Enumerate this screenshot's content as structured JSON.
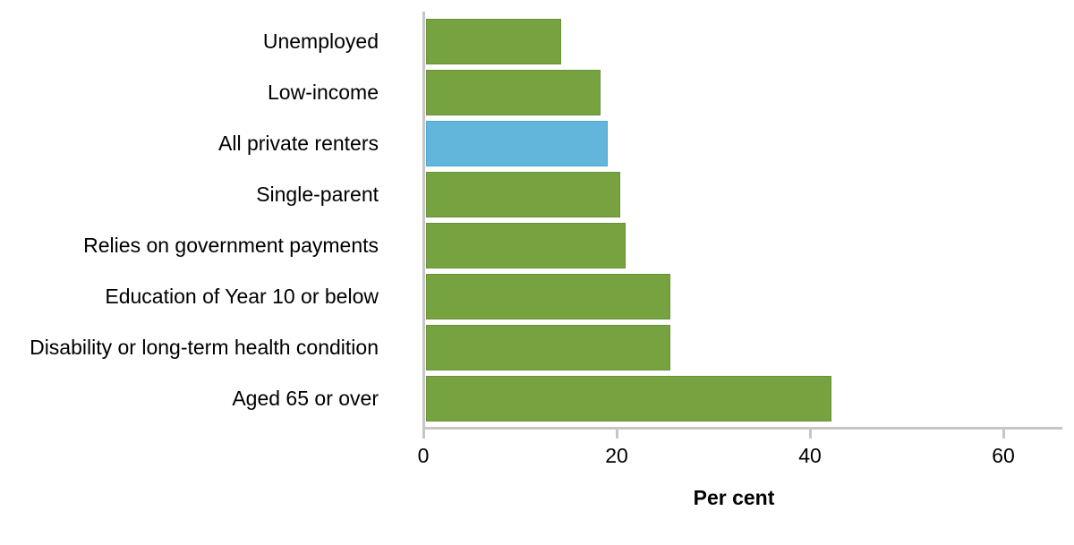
{
  "chart_data": {
    "type": "bar",
    "orientation": "horizontal",
    "title": "",
    "categories": [
      "Unemployed",
      "Low-income",
      "All private renters",
      "Single-parent",
      "Relies on government payments",
      "Education of Year 10 or below",
      "Disability or long-term health condition",
      "Aged 65 or over"
    ],
    "values": [
      14.3,
      18.3,
      19.1,
      20.4,
      20.9,
      25.6,
      25.6,
      42.2
    ],
    "highlight_index": 2,
    "highlight_category": "All private renters",
    "xlabel": "Per cent",
    "ylabel": "",
    "x_ticks": [
      0,
      20,
      40,
      60
    ],
    "xlim": [
      0,
      66
    ],
    "grid": false,
    "legend": false,
    "colors": {
      "bar_fill": "#76A240",
      "bar_border": "#69913A",
      "highlight_fill": "#62B5DB",
      "highlight_border": "#4EA6D0",
      "axis": "#C6C6C6",
      "text": "#000000",
      "background": "#FFFFFF"
    }
  }
}
